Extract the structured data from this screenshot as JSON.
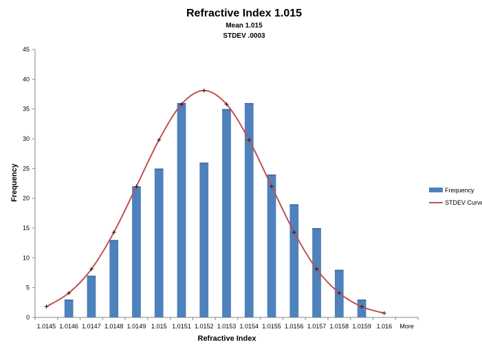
{
  "chart_data": {
    "type": "bar",
    "title": "Refractive Index 1.015",
    "subtitle_lines": [
      "Mean  1.015",
      "STDEV .0003"
    ],
    "xlabel": "Refractive Index",
    "ylabel": "Frequency",
    "ylim": [
      0,
      45
    ],
    "yticks": [
      0,
      5,
      10,
      15,
      20,
      25,
      30,
      35,
      40,
      45
    ],
    "grid": false,
    "legend_position": "right",
    "categories": [
      "1.0145",
      "1.0146",
      "1.0147",
      "1.0148",
      "1.0149",
      "1.015",
      "1.0151",
      "1.0152",
      "1.0153",
      "1.0154",
      "1.0155",
      "1.0156",
      "1.0157",
      "1.0158",
      "1.0159",
      "1.016",
      "More"
    ],
    "series": [
      {
        "name": "Frequency",
        "kind": "bar",
        "color": "#4F81BD",
        "values": [
          0,
          3,
          7,
          13,
          22,
          25,
          36,
          26,
          35,
          36,
          24,
          19,
          15,
          8,
          3,
          0,
          null
        ]
      },
      {
        "name": "STDEV Curve",
        "kind": "line",
        "color": "#C0504D",
        "values": [
          1.8,
          4.1,
          8.1,
          14.3,
          22.0,
          29.8,
          35.8,
          38.1,
          35.8,
          29.8,
          22.0,
          14.3,
          8.1,
          4.1,
          1.8,
          0.7,
          null
        ]
      }
    ]
  }
}
